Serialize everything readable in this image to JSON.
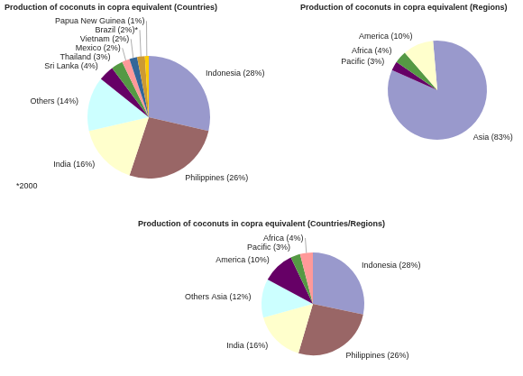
{
  "chart_data": [
    {
      "type": "pie",
      "title": "Production of coconuts in copra equivalent (Countries)",
      "categories": [
        "Indonesia (28%)",
        "Philippines (26%)",
        "India (16%)",
        "Others (14%)",
        "Sri Lanka (4%)",
        "Thailand (3%)",
        "Mexico (2%)",
        "Vietnam (2%)",
        "Brazil (2%)*",
        "Papua New Guinea (1%)"
      ],
      "values": [
        28,
        26,
        16,
        14,
        4,
        3,
        2,
        2,
        2,
        1
      ],
      "colors": [
        "#9999cc",
        "#996666",
        "#ffffcc",
        "#ccffff",
        "#660066",
        "#559944",
        "#ff9999",
        "#336699",
        "#cc9933",
        "#ffcc00"
      ],
      "annotations": [
        "*2000"
      ]
    },
    {
      "type": "pie",
      "title": "Production of coconuts in copra equivalent (Regions)",
      "categories": [
        "Asia (83%)",
        "Pacific (3%)",
        "Africa (4%)",
        "America (10%)"
      ],
      "values": [
        83,
        3,
        4,
        10
      ],
      "colors": [
        "#9999cc",
        "#660066",
        "#559944",
        "#ffffcc"
      ]
    },
    {
      "type": "pie",
      "title": "Production of coconuts in copra equivalent (Countries/Regions)",
      "categories": [
        "Indonesia (28%)",
        "Philippines (26%)",
        "India (16%)",
        "Others Asia (12%)",
        "America (10%)",
        "Pacific (3%)",
        "Africa (4%)"
      ],
      "values": [
        28,
        26,
        16,
        12,
        10,
        3,
        4
      ],
      "colors": [
        "#9999cc",
        "#996666",
        "#ffffcc",
        "#ccffff",
        "#660066",
        "#559944",
        "#ff9999"
      ]
    }
  ]
}
